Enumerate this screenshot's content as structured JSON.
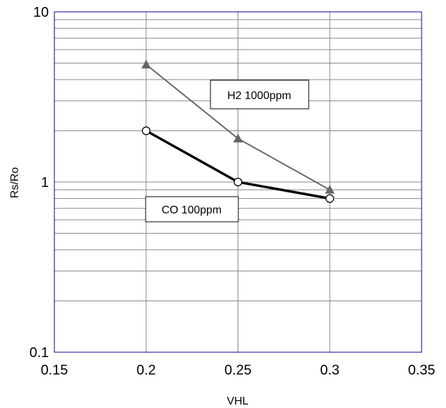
{
  "chart_data": {
    "type": "line",
    "title": "",
    "xlabel": "VHL",
    "ylabel": "Rs/Ro",
    "xlim": [
      0.15,
      0.35
    ],
    "ylim": [
      0.1,
      10
    ],
    "yscale": "log",
    "grid": true,
    "x_ticks": [
      "0.15",
      "0.2",
      "0.25",
      "0.3",
      "0.35"
    ],
    "y_ticks": [
      "0.1",
      "1",
      "10"
    ],
    "series": [
      {
        "name": "H2 1000ppm",
        "x": [
          0.2,
          0.25,
          0.3
        ],
        "values": [
          4.9,
          1.8,
          0.9
        ],
        "color": "#666666",
        "marker": "filled-triangle"
      },
      {
        "name": "CO 100ppm",
        "x": [
          0.2,
          0.25,
          0.3
        ],
        "values": [
          2.0,
          1.0,
          0.8
        ],
        "color": "#000000",
        "marker": "open-circle"
      }
    ],
    "annotations": [
      {
        "text": "H2 1000ppm",
        "series": 0
      },
      {
        "text": "CO 100ppm",
        "series": 1
      }
    ],
    "colors": {
      "frame": "#00008b",
      "grid": "#888888"
    }
  }
}
